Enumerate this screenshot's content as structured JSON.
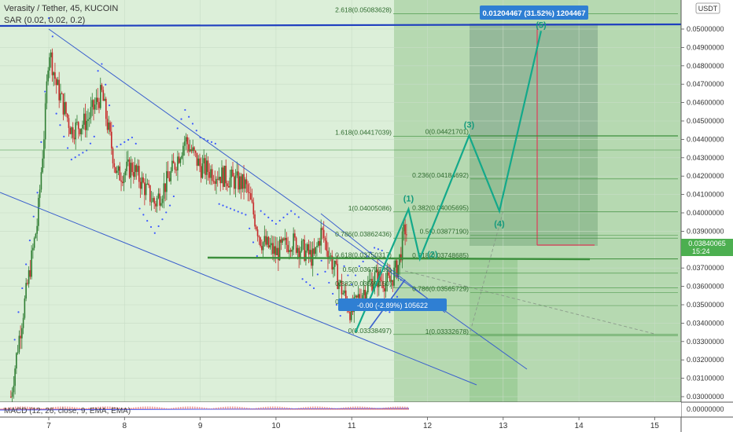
{
  "header": {
    "symbol_line": "Verasity / Tether, 45, KUCOIN",
    "indicator_line": "SAR (0.02, 0.02, 0.2)",
    "currency": "USDT"
  },
  "price_tag": {
    "price": "0.03840065",
    "countdown": "15:24"
  },
  "macd_label": "MACD (12, 26, close, 9, EMA, EMA)",
  "price_axis": {
    "ticks": [
      "0.05000000",
      "0.04900000",
      "0.04800000",
      "0.04700000",
      "0.04600000",
      "0.04500000",
      "0.04400000",
      "0.04300000",
      "0.04200000",
      "0.04100000",
      "0.04000000",
      "0.03900000",
      "0.03700000",
      "0.03600000",
      "0.03500000",
      "0.03400000",
      "0.03300000",
      "0.03200000",
      "0.03100000",
      "0.03000000"
    ],
    "macd_tick": "0.00000000"
  },
  "time_axis": {
    "ticks": [
      "7",
      "8",
      "9",
      "10",
      "11",
      "12",
      "13",
      "14",
      "15"
    ]
  },
  "fib_left": [
    {
      "label": "2.618(0.05083628)",
      "price": 0.05083628
    },
    {
      "label": "1.618(0.04417039)",
      "price": 0.04417039
    },
    {
      "label": "1(0.04005086)",
      "price": 0.04005086
    },
    {
      "label": "0.786(0.03862436)",
      "price": 0.03862436
    },
    {
      "label": "0.618(0.03750317)",
      "price": 0.03750317
    },
    {
      "label": "0.5(0.03671739)",
      "price": 0.03671739
    },
    {
      "label": "0.382(0.03593150)",
      "price": 0.0359315
    },
    {
      "label": "0.236(0.03495729)",
      "price": 0.03495729
    },
    {
      "label": "0(0.03338497)",
      "price": 0.03338497
    }
  ],
  "fib_right": [
    {
      "label": "0(0.04421701)",
      "price": 0.04421701
    },
    {
      "label": "0.236(0.04184692)",
      "price": 0.04184692
    },
    {
      "label": "0.382(0.04005695)",
      "price": 0.04005695
    },
    {
      "label": "0.5(0.03877190)",
      "price": 0.0387719
    },
    {
      "label": "0.618(0.03748685)",
      "price": 0.03748685
    },
    {
      "label": "0.786(0.03565729)",
      "price": 0.03565729
    },
    {
      "label": "1(0.03332678)",
      "price": 0.03332678
    }
  ],
  "measure_top": {
    "text": "0.01204467 (31.52%) 1204467"
  },
  "measure_bottom": {
    "text": "-0.00 (-2.89%) 105622"
  },
  "waves": [
    "(1)",
    "(2)",
    "(3)",
    "(4)",
    "(5)"
  ],
  "colors": {
    "bull": "#26a69a",
    "bear": "#ef5350",
    "green_candle": "#2e7d32",
    "red_candle": "#c62828",
    "trend": "#3a5fcd",
    "resistance": "#1f3fbf",
    "support": "#3c8f3c",
    "wave": "#13a98a",
    "measure": "#2f7fd3"
  },
  "chart_data": {
    "type": "candlestick",
    "x_ticks": [
      "7",
      "8",
      "9",
      "10",
      "11",
      "12",
      "13",
      "14",
      "15"
    ],
    "ylim": [
      0.0297,
      0.052
    ],
    "series": [
      {
        "name": "Verasity / Tether, 45, KUCOIN",
        "values": "OHLC price series approx 0.0300 – 0.0500"
      }
    ],
    "wave_points": [
      {
        "label": "",
        "x": 11.05,
        "y": 0.0335
      },
      {
        "label": "(1)",
        "x": 11.75,
        "y": 0.0402
      },
      {
        "label": "(2)",
        "x": 11.9,
        "y": 0.0375
      },
      {
        "label": "(3)",
        "x": 12.55,
        "y": 0.0442
      },
      {
        "label": "(4)",
        "x": 12.95,
        "y": 0.0401
      },
      {
        "label": "(5)",
        "x": 13.5,
        "y": 0.0499
      }
    ],
    "horizontal_levels": [
      {
        "price": 0.05025,
        "name": "resistance"
      },
      {
        "price": 0.03749,
        "name": "support"
      }
    ]
  }
}
